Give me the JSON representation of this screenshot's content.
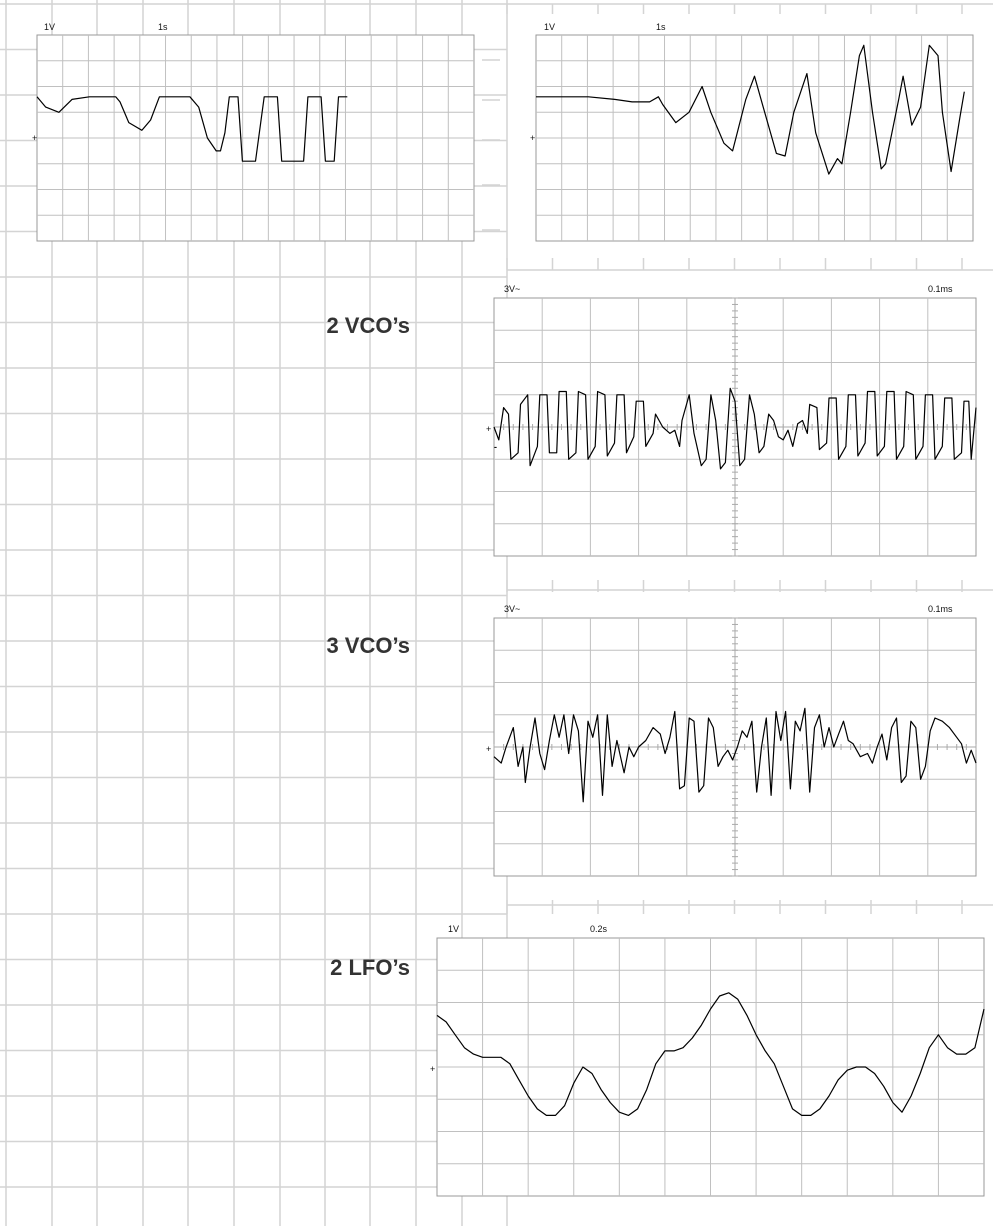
{
  "colors": {
    "page_grid": "#d4d4d4",
    "page_grid_major": "#c8c8c8",
    "scope_grid": "#c0c0c0",
    "scope_border": "#999999",
    "trace": "#000000",
    "label": "#333333"
  },
  "labels": {
    "two_vco": "2 VCO’s",
    "three_vco": "3 VCO’s",
    "two_lfo": "2 LFO’s"
  },
  "chart_data": [
    {
      "type": "line",
      "volts_per_div": "1V",
      "time_per_div": "1s",
      "ground_marker": "+",
      "xlim": [
        0,
        10
      ],
      "ylim": [
        -4,
        4
      ],
      "points": [
        [
          0,
          1.6
        ],
        [
          0.2,
          1.2
        ],
        [
          0.5,
          1.0
        ],
        [
          0.8,
          1.5
        ],
        [
          1.2,
          1.6
        ],
        [
          1.8,
          1.6
        ],
        [
          1.9,
          1.4
        ],
        [
          2.1,
          0.6
        ],
        [
          2.4,
          0.3
        ],
        [
          2.6,
          0.7
        ],
        [
          2.8,
          1.6
        ],
        [
          3.2,
          1.6
        ],
        [
          3.5,
          1.6
        ],
        [
          3.7,
          1.2
        ],
        [
          3.9,
          0.0
        ],
        [
          4.1,
          -0.5
        ],
        [
          4.2,
          -0.5
        ],
        [
          4.3,
          0.2
        ],
        [
          4.4,
          1.6
        ],
        [
          4.6,
          1.6
        ],
        [
          4.7,
          -0.9
        ],
        [
          4.8,
          -0.9
        ],
        [
          5.0,
          -0.9
        ],
        [
          5.2,
          1.6
        ],
        [
          5.5,
          1.6
        ],
        [
          5.6,
          -0.9
        ],
        [
          6.1,
          -0.9
        ],
        [
          6.2,
          1.6
        ],
        [
          6.5,
          1.6
        ],
        [
          6.6,
          -0.9
        ],
        [
          6.8,
          -0.9
        ],
        [
          6.9,
          1.6
        ],
        [
          7.1,
          1.6
        ]
      ]
    },
    {
      "type": "line",
      "volts_per_div": "1V",
      "time_per_div": "1s",
      "ground_marker": "+",
      "xlim": [
        0,
        10
      ],
      "ylim": [
        -4,
        4
      ],
      "points": [
        [
          0,
          1.6
        ],
        [
          1.2,
          1.6
        ],
        [
          1.8,
          1.5
        ],
        [
          2.2,
          1.4
        ],
        [
          2.6,
          1.4
        ],
        [
          2.8,
          1.6
        ],
        [
          2.9,
          1.3
        ],
        [
          3.2,
          0.6
        ],
        [
          3.5,
          1.0
        ],
        [
          3.8,
          2.0
        ],
        [
          4.0,
          1.0
        ],
        [
          4.3,
          -0.2
        ],
        [
          4.5,
          -0.5
        ],
        [
          4.8,
          1.5
        ],
        [
          5.0,
          2.4
        ],
        [
          5.2,
          1.2
        ],
        [
          5.5,
          -0.6
        ],
        [
          5.7,
          -0.7
        ],
        [
          5.9,
          1.0
        ],
        [
          6.2,
          2.5
        ],
        [
          6.4,
          0.2
        ],
        [
          6.7,
          -1.4
        ],
        [
          6.9,
          -0.8
        ],
        [
          7.0,
          -1.0
        ],
        [
          7.2,
          1.0
        ],
        [
          7.4,
          3.2
        ],
        [
          7.5,
          3.6
        ],
        [
          7.7,
          1.0
        ],
        [
          7.9,
          -1.2
        ],
        [
          8.0,
          -1.0
        ],
        [
          8.3,
          1.5
        ],
        [
          8.4,
          2.4
        ],
        [
          8.6,
          0.5
        ],
        [
          8.8,
          1.2
        ],
        [
          9.0,
          3.6
        ],
        [
          9.2,
          3.2
        ],
        [
          9.3,
          1.0
        ],
        [
          9.5,
          -1.3
        ],
        [
          9.7,
          0.8
        ],
        [
          9.8,
          1.8
        ]
      ]
    },
    {
      "type": "line",
      "volts_per_div": "3V~",
      "time_per_div": "0.1ms",
      "ground_marker": "+",
      "secondary_marker": "-",
      "xlim": [
        0,
        10
      ],
      "ylim": [
        -4,
        4
      ],
      "points": [
        [
          0.0,
          0.0
        ],
        [
          0.1,
          -0.4
        ],
        [
          0.2,
          0.6
        ],
        [
          0.3,
          0.4
        ],
        [
          0.35,
          -1.0
        ],
        [
          0.5,
          -0.8
        ],
        [
          0.55,
          0.7
        ],
        [
          0.7,
          1.0
        ],
        [
          0.75,
          -1.2
        ],
        [
          0.9,
          -0.6
        ],
        [
          0.95,
          1.0
        ],
        [
          1.1,
          1.0
        ],
        [
          1.15,
          -0.8
        ],
        [
          1.3,
          -0.8
        ],
        [
          1.35,
          1.1
        ],
        [
          1.5,
          1.1
        ],
        [
          1.55,
          -1.0
        ],
        [
          1.7,
          -0.8
        ],
        [
          1.75,
          1.1
        ],
        [
          1.9,
          1.0
        ],
        [
          1.95,
          -1.0
        ],
        [
          2.1,
          -0.6
        ],
        [
          2.15,
          1.1
        ],
        [
          2.3,
          1.0
        ],
        [
          2.35,
          -0.9
        ],
        [
          2.5,
          -0.5
        ],
        [
          2.55,
          1.0
        ],
        [
          2.7,
          1.0
        ],
        [
          2.75,
          -0.8
        ],
        [
          2.9,
          -0.3
        ],
        [
          2.95,
          0.8
        ],
        [
          3.1,
          0.8
        ],
        [
          3.15,
          -0.6
        ],
        [
          3.3,
          -0.2
        ],
        [
          3.35,
          0.4
        ],
        [
          3.5,
          0.0
        ],
        [
          3.65,
          -0.2
        ],
        [
          3.75,
          -0.1
        ],
        [
          3.85,
          -0.6
        ],
        [
          3.9,
          0.2
        ],
        [
          4.05,
          1.0
        ],
        [
          4.15,
          -0.2
        ],
        [
          4.3,
          -1.2
        ],
        [
          4.4,
          -1.0
        ],
        [
          4.5,
          1.0
        ],
        [
          4.6,
          0.2
        ],
        [
          4.7,
          -1.3
        ],
        [
          4.8,
          -1.1
        ],
        [
          4.9,
          1.2
        ],
        [
          5.0,
          0.8
        ],
        [
          5.1,
          -1.2
        ],
        [
          5.2,
          -1.0
        ],
        [
          5.3,
          1.0
        ],
        [
          5.4,
          0.4
        ],
        [
          5.5,
          -0.8
        ],
        [
          5.6,
          -0.6
        ],
        [
          5.7,
          0.4
        ],
        [
          5.8,
          0.2
        ],
        [
          5.9,
          -0.3
        ],
        [
          6.0,
          -0.4
        ],
        [
          6.1,
          -0.1
        ],
        [
          6.2,
          -0.6
        ],
        [
          6.3,
          0.1
        ],
        [
          6.4,
          0.2
        ],
        [
          6.5,
          -0.2
        ],
        [
          6.55,
          0.7
        ],
        [
          6.7,
          0.6
        ],
        [
          6.75,
          -0.7
        ],
        [
          6.9,
          -0.5
        ],
        [
          6.95,
          0.9
        ],
        [
          7.1,
          0.9
        ],
        [
          7.15,
          -1.0
        ],
        [
          7.3,
          -0.6
        ],
        [
          7.35,
          1.0
        ],
        [
          7.5,
          1.0
        ],
        [
          7.55,
          -0.9
        ],
        [
          7.7,
          -0.5
        ],
        [
          7.75,
          1.1
        ],
        [
          7.9,
          1.1
        ],
        [
          7.95,
          -0.9
        ],
        [
          8.1,
          -0.6
        ],
        [
          8.15,
          1.1
        ],
        [
          8.3,
          1.1
        ],
        [
          8.35,
          -1.0
        ],
        [
          8.5,
          -0.6
        ],
        [
          8.55,
          1.1
        ],
        [
          8.7,
          1.0
        ],
        [
          8.75,
          -1.0
        ],
        [
          8.9,
          -0.6
        ],
        [
          8.95,
          1.0
        ],
        [
          9.1,
          1.0
        ],
        [
          9.15,
          -1.0
        ],
        [
          9.3,
          -0.6
        ],
        [
          9.35,
          0.9
        ],
        [
          9.5,
          0.9
        ],
        [
          9.55,
          -1.0
        ],
        [
          9.7,
          -0.8
        ],
        [
          9.75,
          0.8
        ],
        [
          9.85,
          0.8
        ],
        [
          9.9,
          -1.0
        ],
        [
          10.0,
          0.6
        ]
      ]
    },
    {
      "type": "line",
      "volts_per_div": "3V~",
      "time_per_div": "0.1ms",
      "ground_marker": "+",
      "xlim": [
        0,
        10
      ],
      "ylim": [
        -4,
        4
      ],
      "points": [
        [
          0.0,
          -0.3
        ],
        [
          0.15,
          -0.5
        ],
        [
          0.25,
          0.0
        ],
        [
          0.4,
          0.6
        ],
        [
          0.5,
          -0.6
        ],
        [
          0.6,
          0.0
        ],
        [
          0.65,
          -1.1
        ],
        [
          0.75,
          0.0
        ],
        [
          0.85,
          0.9
        ],
        [
          0.95,
          -0.2
        ],
        [
          1.05,
          -0.7
        ],
        [
          1.15,
          0.2
        ],
        [
          1.25,
          1.0
        ],
        [
          1.35,
          0.3
        ],
        [
          1.45,
          1.0
        ],
        [
          1.55,
          -0.2
        ],
        [
          1.65,
          1.0
        ],
        [
          1.75,
          0.5
        ],
        [
          1.85,
          -1.7
        ],
        [
          1.95,
          0.8
        ],
        [
          2.05,
          0.3
        ],
        [
          2.15,
          1.0
        ],
        [
          2.25,
          -1.5
        ],
        [
          2.35,
          1.0
        ],
        [
          2.45,
          -0.6
        ],
        [
          2.55,
          0.2
        ],
        [
          2.7,
          -0.8
        ],
        [
          2.8,
          0.0
        ],
        [
          2.9,
          -0.3
        ],
        [
          3.0,
          0.0
        ],
        [
          3.15,
          0.2
        ],
        [
          3.3,
          0.6
        ],
        [
          3.45,
          0.4
        ],
        [
          3.55,
          -0.2
        ],
        [
          3.65,
          0.3
        ],
        [
          3.75,
          1.1
        ],
        [
          3.85,
          -1.3
        ],
        [
          3.95,
          -1.2
        ],
        [
          4.05,
          0.9
        ],
        [
          4.15,
          0.8
        ],
        [
          4.25,
          -1.4
        ],
        [
          4.35,
          -1.2
        ],
        [
          4.45,
          0.9
        ],
        [
          4.55,
          0.6
        ],
        [
          4.65,
          -0.6
        ],
        [
          4.75,
          -0.3
        ],
        [
          4.85,
          -0.1
        ],
        [
          4.95,
          -0.4
        ],
        [
          5.05,
          0.0
        ],
        [
          5.15,
          0.5
        ],
        [
          5.25,
          0.3
        ],
        [
          5.35,
          0.8
        ],
        [
          5.45,
          -1.4
        ],
        [
          5.55,
          0.0
        ],
        [
          5.65,
          0.9
        ],
        [
          5.75,
          -1.5
        ],
        [
          5.85,
          1.1
        ],
        [
          5.95,
          0.2
        ],
        [
          6.05,
          1.1
        ],
        [
          6.15,
          -1.3
        ],
        [
          6.25,
          0.8
        ],
        [
          6.35,
          0.5
        ],
        [
          6.45,
          1.2
        ],
        [
          6.55,
          -1.4
        ],
        [
          6.65,
          0.6
        ],
        [
          6.75,
          1.0
        ],
        [
          6.85,
          0.0
        ],
        [
          6.95,
          0.6
        ],
        [
          7.05,
          0.0
        ],
        [
          7.15,
          0.4
        ],
        [
          7.25,
          0.8
        ],
        [
          7.35,
          0.2
        ],
        [
          7.45,
          0.1
        ],
        [
          7.6,
          -0.3
        ],
        [
          7.75,
          -0.2
        ],
        [
          7.85,
          -0.5
        ],
        [
          7.95,
          0.0
        ],
        [
          8.05,
          0.4
        ],
        [
          8.15,
          -0.4
        ],
        [
          8.25,
          0.6
        ],
        [
          8.35,
          0.9
        ],
        [
          8.45,
          -1.1
        ],
        [
          8.55,
          -0.9
        ],
        [
          8.65,
          0.8
        ],
        [
          8.75,
          0.6
        ],
        [
          8.85,
          -1.0
        ],
        [
          8.95,
          -0.6
        ],
        [
          9.05,
          0.5
        ],
        [
          9.15,
          0.9
        ],
        [
          9.3,
          0.8
        ],
        [
          9.45,
          0.6
        ],
        [
          9.6,
          0.3
        ],
        [
          9.7,
          0.1
        ],
        [
          9.8,
          -0.5
        ],
        [
          9.9,
          -0.1
        ],
        [
          10.0,
          -0.5
        ]
      ]
    },
    {
      "type": "line",
      "volts_per_div": "1V",
      "time_per_div": "0.2s",
      "ground_marker": "+",
      "xlim": [
        0,
        12
      ],
      "ylim": [
        -4,
        4
      ],
      "points": [
        [
          0.0,
          1.6
        ],
        [
          0.2,
          1.4
        ],
        [
          0.4,
          1.0
        ],
        [
          0.6,
          0.6
        ],
        [
          0.8,
          0.4
        ],
        [
          1.0,
          0.3
        ],
        [
          1.2,
          0.3
        ],
        [
          1.4,
          0.3
        ],
        [
          1.6,
          0.1
        ],
        [
          1.8,
          -0.4
        ],
        [
          2.0,
          -0.9
        ],
        [
          2.2,
          -1.3
        ],
        [
          2.4,
          -1.5
        ],
        [
          2.6,
          -1.5
        ],
        [
          2.8,
          -1.2
        ],
        [
          3.0,
          -0.5
        ],
        [
          3.2,
          0.0
        ],
        [
          3.4,
          -0.2
        ],
        [
          3.6,
          -0.7
        ],
        [
          3.8,
          -1.1
        ],
        [
          4.0,
          -1.4
        ],
        [
          4.2,
          -1.5
        ],
        [
          4.4,
          -1.3
        ],
        [
          4.6,
          -0.7
        ],
        [
          4.8,
          0.1
        ],
        [
          5.0,
          0.5
        ],
        [
          5.2,
          0.5
        ],
        [
          5.4,
          0.6
        ],
        [
          5.6,
          0.9
        ],
        [
          5.8,
          1.3
        ],
        [
          6.0,
          1.8
        ],
        [
          6.2,
          2.2
        ],
        [
          6.4,
          2.3
        ],
        [
          6.6,
          2.1
        ],
        [
          6.8,
          1.6
        ],
        [
          7.0,
          1.0
        ],
        [
          7.2,
          0.5
        ],
        [
          7.4,
          0.1
        ],
        [
          7.6,
          -0.6
        ],
        [
          7.8,
          -1.3
        ],
        [
          8.0,
          -1.5
        ],
        [
          8.2,
          -1.5
        ],
        [
          8.4,
          -1.3
        ],
        [
          8.6,
          -0.9
        ],
        [
          8.8,
          -0.4
        ],
        [
          9.0,
          -0.1
        ],
        [
          9.2,
          0.0
        ],
        [
          9.4,
          0.0
        ],
        [
          9.6,
          -0.2
        ],
        [
          9.8,
          -0.6
        ],
        [
          10.0,
          -1.1
        ],
        [
          10.2,
          -1.4
        ],
        [
          10.4,
          -0.9
        ],
        [
          10.6,
          -0.2
        ],
        [
          10.8,
          0.6
        ],
        [
          11.0,
          1.0
        ],
        [
          11.2,
          0.6
        ],
        [
          11.4,
          0.4
        ],
        [
          11.6,
          0.4
        ],
        [
          11.8,
          0.6
        ],
        [
          12.0,
          1.8
        ]
      ]
    }
  ]
}
